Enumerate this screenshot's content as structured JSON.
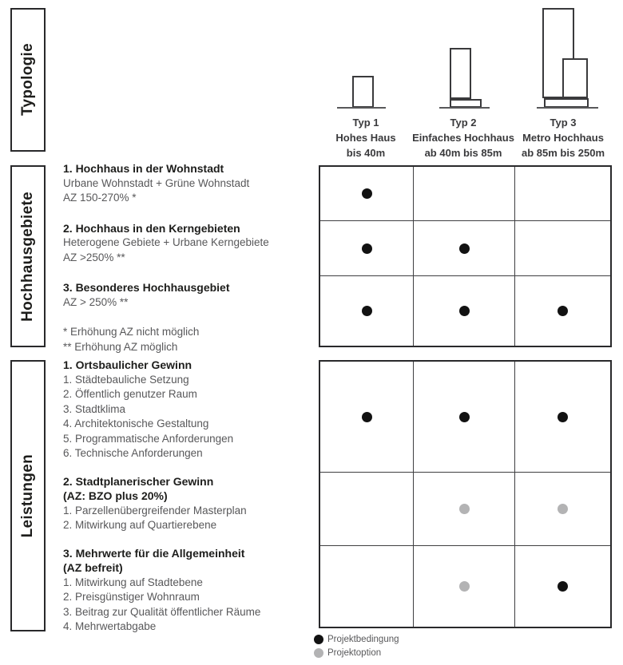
{
  "sections": {
    "typologie": {
      "label": "Typologie"
    },
    "hochhausgebiete": {
      "label": "Hochhausgebiete",
      "items": [
        {
          "title": "1. Hochhaus in der Wohnstadt",
          "lines": [
            "Urbane Wohnstadt + Grüne Wohnstadt",
            "AZ 150-270% *"
          ]
        },
        {
          "title": "2. Hochhaus in den Kerngebieten",
          "lines": [
            "Heterogene Gebiete + Urbane Kerngebiete",
            "AZ >250% **"
          ]
        },
        {
          "title": "3. Besonderes Hochhausgebiet",
          "lines": [
            "AZ > 250% **"
          ]
        }
      ],
      "footnotes": [
        "* Erhöhung AZ nicht möglich",
        "** Erhöhung AZ möglich"
      ]
    },
    "leistungen": {
      "label": "Leistungen",
      "items": [
        {
          "title": "1. Ortsbaulicher Gewinn",
          "subtitle": "",
          "lines": [
            "1. Städtebauliche Setzung",
            "2. Öffentlich genutzer Raum",
            "3. Stadtklima",
            "4. Architektonische Gestaltung",
            "5. Programmatische Anforderungen",
            "6. Technische Anforderungen"
          ]
        },
        {
          "title": "2. Stadtplanerischer Gewinn",
          "subtitle": "(AZ: BZO plus 20%)",
          "lines": [
            "1. Parzellenübergreifender Masterplan",
            "2.  Mitwirkung auf Quartierebene"
          ]
        },
        {
          "title": "3. Mehrwerte für die Allgemeinheit",
          "subtitle": "(AZ befreit)",
          "lines": [
            "1. Mitwirkung auf Stadtebene",
            "2. Preisgünstiger Wohnraum",
            "3. Beitrag zur Qualität öffentlicher Räume",
            "4. Mehrwertabgabe"
          ]
        }
      ]
    }
  },
  "types": [
    {
      "name": "Typ 1",
      "desc": "Hohes Haus",
      "range": "bis 40m"
    },
    {
      "name": "Typ 2",
      "desc": "Einfaches Hochhaus",
      "range": "ab 40m bis 85m"
    },
    {
      "name": "Typ 3",
      "desc": "Metro Hochhaus",
      "range": "ab 85m bis 250m"
    }
  ],
  "matrix": {
    "hochhausgebiete": [
      [
        "black",
        null,
        null
      ],
      [
        "black",
        "black",
        null
      ],
      [
        "black",
        "black",
        "black"
      ]
    ],
    "leistungen": [
      [
        "black",
        "black",
        "black"
      ],
      [
        null,
        "gray",
        "gray"
      ],
      [
        null,
        "gray",
        "black"
      ]
    ]
  },
  "legend": [
    {
      "color": "black",
      "label": "Projektbedingung"
    },
    {
      "color": "gray",
      "label": "Projektoption"
    }
  ],
  "colors": {
    "projektbedingung_dot": "#121212",
    "projektoption_dot": "#b3b3b4",
    "heading_text": "#1d1d1b",
    "body_text": "#58585a",
    "border": "#29292b"
  }
}
